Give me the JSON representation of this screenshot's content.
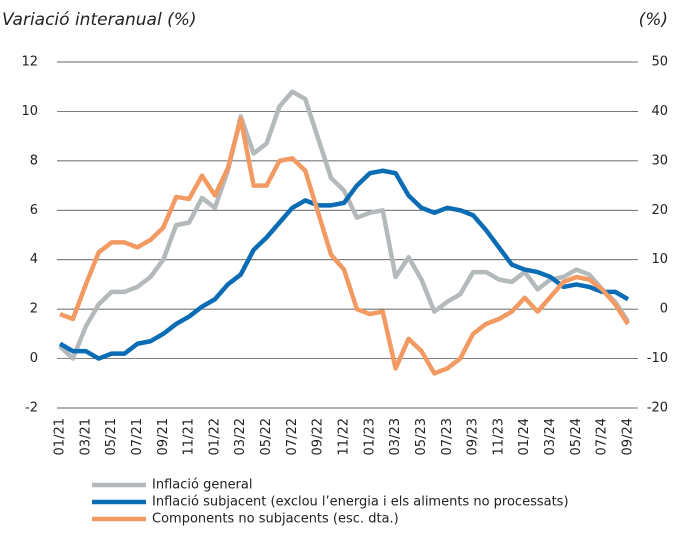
{
  "chart_data": {
    "type": "line",
    "title": "Variació interanual (%)",
    "y2_label": "(%)",
    "categories": [
      "01/21",
      null,
      "03/21",
      null,
      "05/21",
      null,
      "07/21",
      null,
      "09/21",
      null,
      "11/21",
      null,
      "01/22",
      null,
      "03/22",
      null,
      "05/22",
      null,
      "07/22",
      null,
      "09/22",
      null,
      "11/22",
      null,
      "01/23",
      null,
      "03/23",
      null,
      "05/23",
      null,
      "07/23",
      null,
      "09/23",
      null,
      "11/23",
      null,
      "01/24",
      null,
      "03/24",
      null,
      "05/24",
      null,
      "07/24",
      null,
      "09/24"
    ],
    "series": [
      {
        "name": "Inflació general",
        "color": "#b4b9bb",
        "values": [
          0.5,
          0.0,
          1.3,
          2.2,
          2.7,
          2.7,
          2.9,
          3.3,
          4.0,
          5.4,
          5.5,
          6.5,
          6.1,
          7.6,
          9.8,
          8.3,
          8.7,
          10.2,
          10.8,
          10.5,
          8.9,
          7.3,
          6.8,
          5.7,
          5.9,
          6.0,
          3.3,
          4.1,
          3.2,
          1.9,
          2.3,
          2.6,
          3.5,
          3.5,
          3.2,
          3.1,
          3.5,
          2.8,
          3.2,
          3.3,
          3.6,
          3.4,
          2.8,
          2.3,
          1.5
        ]
      },
      {
        "name": "Inflació subjacent (exclou l’energia i els aliments no processats)",
        "color": "#0a6cb4",
        "values": [
          0.6,
          0.3,
          0.3,
          0.0,
          0.2,
          0.2,
          0.6,
          0.7,
          1.0,
          1.4,
          1.7,
          2.1,
          2.4,
          3.0,
          3.4,
          4.4,
          4.9,
          5.5,
          6.1,
          6.4,
          6.2,
          6.2,
          6.3,
          7.0,
          7.5,
          7.6,
          7.5,
          6.6,
          6.1,
          5.9,
          6.1,
          6.0,
          5.8,
          5.2,
          4.5,
          3.8,
          3.6,
          3.5,
          3.3,
          2.9,
          3.0,
          2.9,
          2.7,
          2.7,
          2.4
        ]
      },
      {
        "name": "Components no subjacents (esc. dta.)",
        "color": "#f29a62",
        "axis": "y2",
        "values": [
          -1,
          -2,
          5,
          11.5,
          13.5,
          13.5,
          12.5,
          14,
          16.5,
          22.7,
          22.3,
          27,
          23,
          28.5,
          38.5,
          25,
          25,
          30,
          30.5,
          28,
          19.5,
          11,
          8,
          0,
          -1,
          -0.5,
          -12,
          -6,
          -8.5,
          -13,
          -12,
          -10,
          -5,
          -3,
          -2,
          -0.5,
          2.3,
          -0.5,
          2.5,
          5.5,
          6.5,
          6,
          4,
          1,
          -3
        ]
      }
    ],
    "ylim": [
      -2,
      12
    ],
    "yticks": [
      -2,
      0,
      2,
      4,
      6,
      8,
      10,
      12
    ],
    "y2lim": [
      -20,
      50
    ],
    "y2ticks": [
      -20,
      -10,
      0,
      10,
      20,
      30,
      40,
      50
    ],
    "grid": true
  }
}
